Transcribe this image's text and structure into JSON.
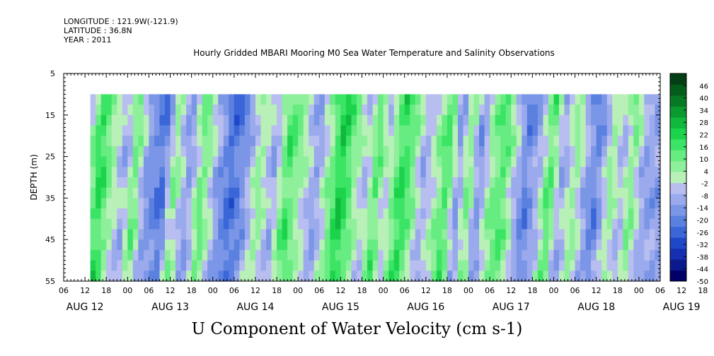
{
  "header": {
    "longitude": "LONGITUDE : 121.9W(-121.9)",
    "latitude": "LATITUDE : 36.8N",
    "year": "YEAR : 2011"
  },
  "chart_title": "Hourly Gridded MBARI Mooring M0 Sea Water Temperature and Salinity Observations",
  "bottom_title": "U Component of Water Velocity (cm s-1)",
  "chart_data": {
    "type": "heatmap",
    "title": "Hourly Gridded MBARI Mooring M0 Sea Water Temperature and Salinity Observations",
    "xlabel": "",
    "ylabel": "DEPTH (m)",
    "quantity": "U Component of Water Velocity (cm s-1)",
    "x_hour_labels": [
      "06",
      "12",
      "18",
      "00",
      "06",
      "12",
      "18",
      "00",
      "06",
      "12",
      "18",
      "00",
      "06",
      "12",
      "18",
      "00",
      "06",
      "12",
      "18",
      "00",
      "06",
      "12",
      "18",
      "00",
      "06",
      "12",
      "18",
      "00",
      "06",
      "12",
      "18",
      "00",
      "06"
    ],
    "x_day_labels": [
      "AUG 12",
      "AUG 13",
      "AUG 14",
      "AUG 15",
      "AUG 16",
      "AUG 17",
      "AUG 18",
      "AUG 19"
    ],
    "x_range_hours_since_aug12_00": [
      6,
      174
    ],
    "data_start_hour": 13.5,
    "data_end_hour": 174,
    "y_ticks": [
      "5",
      "15",
      "25",
      "35",
      "45",
      "55"
    ],
    "ylim": [
      55,
      5
    ],
    "data_depth_range": [
      10,
      55
    ],
    "colorbar_labels": [
      "46",
      "40",
      "34",
      "28",
      "22",
      "16",
      "10",
      "4",
      "-2",
      "-8",
      "-14",
      "-20",
      "-26",
      "-32",
      "-38",
      "-44",
      "-50"
    ],
    "colorbar_range": [
      -50,
      52
    ],
    "colormap": [
      "#000066",
      "#0a1a8c",
      "#1430b0",
      "#1f48c8",
      "#3a66d8",
      "#5a80e0",
      "#7b96e6",
      "#9aaaec",
      "#b8bef0",
      "#b8f0b8",
      "#8ef09a",
      "#66ec80",
      "#3ce466",
      "#1cd44c",
      "#10b83c",
      "#0a9a30",
      "#067a24",
      "#045c1a",
      "#033f12"
    ],
    "pattern_hours": [
      12,
      17,
      20,
      24,
      27,
      30,
      35,
      38,
      42,
      46,
      50,
      54,
      58,
      62,
      66,
      70,
      74,
      78,
      82,
      85,
      88,
      92,
      95,
      98,
      102,
      105,
      108,
      112,
      115,
      118,
      121,
      124,
      127,
      131,
      134,
      137,
      141,
      144,
      147,
      151,
      154,
      157,
      161,
      164,
      167,
      170,
      173
    ],
    "pattern_values": [
      -8,
      20,
      6,
      -10,
      12,
      -12,
      -22,
      8,
      -14,
      12,
      -10,
      -24,
      -14,
      6,
      -10,
      16,
      2,
      -12,
      8,
      24,
      10,
      -6,
      14,
      -4,
      20,
      10,
      -10,
      4,
      16,
      -14,
      10,
      -16,
      6,
      14,
      -4,
      -20,
      -6,
      16,
      -12,
      6,
      -10,
      -20,
      6,
      -8,
      10,
      -10,
      -12
    ]
  }
}
